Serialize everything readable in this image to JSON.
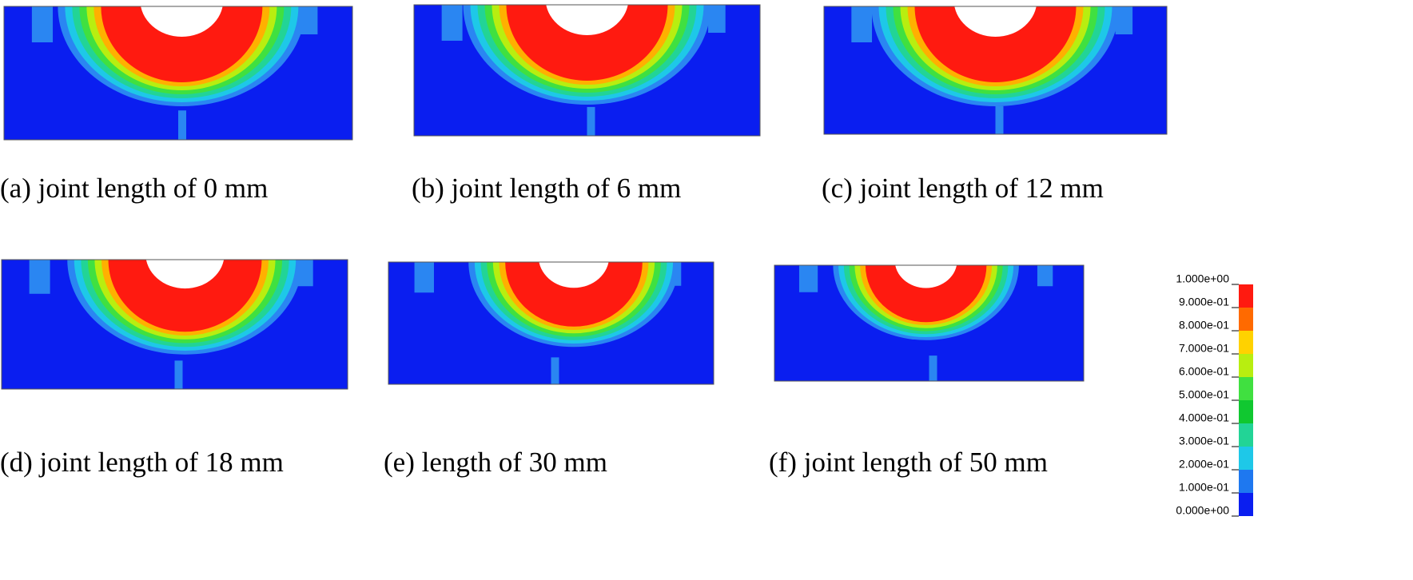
{
  "panels": [
    {
      "caption": "(a) joint length of 0 mm"
    },
    {
      "caption": "(b) joint length of 6 mm"
    },
    {
      "caption": "(c) joint length of 12 mm"
    },
    {
      "caption": "(d) joint length of 18 mm"
    },
    {
      "caption": "(e) length of 30 mm"
    },
    {
      "caption": "(f) joint length of 50 mm"
    }
  ],
  "legend": {
    "labels": [
      "1.000e+00",
      "9.000e-01",
      "8.000e-01",
      "7.000e-01",
      "6.000e-01",
      "5.000e-01",
      "4.000e-01",
      "3.000e-01",
      "2.000e-01",
      "1.000e-01",
      "0.000e+00"
    ]
  }
}
